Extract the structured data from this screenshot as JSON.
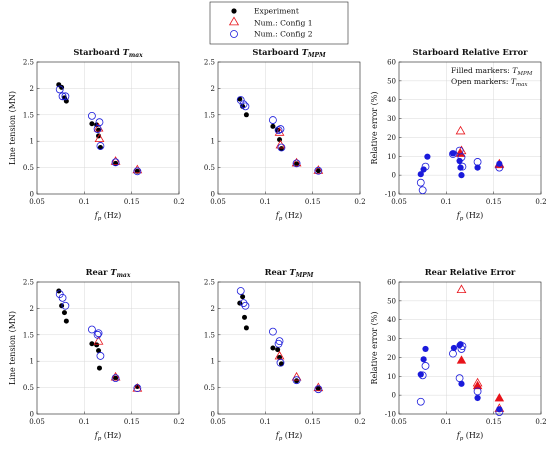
{
  "legend": {
    "items": [
      {
        "label": "Experiment",
        "marker": "dot",
        "color": "#000000"
      },
      {
        "label": "Num.: Config 1",
        "marker": "triangle",
        "color": "#e8131a"
      },
      {
        "label": "Num.: Config 2",
        "marker": "circle",
        "color": "#1a1adb"
      }
    ]
  },
  "colors": {
    "experiment": "#000000",
    "config1": "#e8131a",
    "config2": "#1a1adb"
  },
  "chart_data": [
    {
      "type": "scatter",
      "title_main": "Starboard ",
      "title_sym": "T",
      "title_sub": "max",
      "xlabel_sym": "f",
      "xlabel_sub": "p",
      "xlabel_rest": " (Hz)",
      "ylabel": "Line tension (MN)",
      "xlim": [
        0.05,
        0.2
      ],
      "ylim": [
        0,
        2.5
      ],
      "xticks": [
        "0.05",
        "0.1",
        "0.15",
        "0.2"
      ],
      "yticks": [
        "0",
        "0.5",
        "1",
        "1.5",
        "2",
        "2.5"
      ],
      "grid": true,
      "series": [
        {
          "name": "Experiment",
          "marker": "dot",
          "x": [
            0.073,
            0.076,
            0.079,
            0.081,
            0.108,
            0.113,
            0.115,
            0.115,
            0.117,
            0.133,
            0.156
          ],
          "y": [
            2.07,
            2.02,
            1.82,
            1.76,
            1.33,
            1.31,
            1.21,
            1.1,
            0.88,
            0.58,
            0.43
          ]
        },
        {
          "name": "Num.: Config 1",
          "marker": "triangle",
          "x": [
            0.115,
            0.116,
            0.133,
            0.156
          ],
          "y": [
            1.25,
            1.05,
            0.62,
            0.46
          ]
        },
        {
          "name": "Num.: Config 2",
          "marker": "circle",
          "x": [
            0.074,
            0.077,
            0.08,
            0.108,
            0.114,
            0.116,
            0.117,
            0.133,
            0.156
          ],
          "y": [
            1.98,
            1.85,
            1.85,
            1.48,
            1.23,
            1.36,
            0.91,
            0.6,
            0.43
          ]
        }
      ]
    },
    {
      "type": "scatter",
      "title_main": "Starboard ",
      "title_sym": "T",
      "title_sub": "MPM",
      "xlabel_sym": "f",
      "xlabel_sub": "p",
      "xlabel_rest": " (Hz)",
      "ylabel": "",
      "xlim": [
        0.05,
        0.2
      ],
      "ylim": [
        0,
        2.5
      ],
      "xticks": [
        "0.05",
        "0.1",
        "0.15",
        "0.2"
      ],
      "yticks": [
        "0",
        "0.5",
        "1",
        "1.5",
        "2",
        "2.5"
      ],
      "grid": true,
      "series": [
        {
          "name": "Experiment",
          "marker": "dot",
          "x": [
            0.073,
            0.076,
            0.08,
            0.108,
            0.113,
            0.115,
            0.117,
            0.133,
            0.156
          ],
          "y": [
            1.8,
            1.66,
            1.5,
            1.28,
            1.21,
            1.03,
            0.86,
            0.57,
            0.44
          ]
        },
        {
          "name": "Num.: Config 1",
          "marker": "triangle",
          "x": [
            0.115,
            0.116,
            0.133,
            0.156
          ],
          "y": [
            1.17,
            0.93,
            0.59,
            0.45
          ]
        },
        {
          "name": "Num.: Config 2",
          "marker": "circle",
          "x": [
            0.074,
            0.077,
            0.079,
            0.108,
            0.114,
            0.116,
            0.117,
            0.133,
            0.156
          ],
          "y": [
            1.78,
            1.7,
            1.66,
            1.4,
            1.21,
            1.23,
            0.88,
            0.58,
            0.44
          ]
        }
      ]
    },
    {
      "type": "scatter",
      "title_main": "Starboard Relative Error",
      "title_sym": "",
      "title_sub": "",
      "xlabel_sym": "f",
      "xlabel_sub": "p",
      "xlabel_rest": " (Hz)",
      "ylabel": "Relative error (%)",
      "xlim": [
        0.05,
        0.2
      ],
      "ylim": [
        -10,
        60
      ],
      "xticks": [
        "0.05",
        "0.1",
        "0.15",
        "0.2"
      ],
      "yticks": [
        "-10",
        "0",
        "10",
        "20",
        "30",
        "40",
        "50",
        "60"
      ],
      "grid": true,
      "notes": [
        {
          "main": "Filled markers: ",
          "sym": "T",
          "sub": "MPM"
        },
        {
          "main": "Open markers: ",
          "sym": "T",
          "sub": "max"
        }
      ],
      "series": [
        {
          "name": "Num.: Config 1",
          "marker": "triangle",
          "x": [
            0.115,
            0.116,
            0.156
          ],
          "y": [
            23.5,
            13,
            6
          ]
        },
        {
          "name": "Num.: Config 1 (filled)",
          "marker": "triangle-filled",
          "x": [
            0.115,
            0.156
          ],
          "y": [
            11.5,
            5.5
          ]
        },
        {
          "name": "Num.: Config 2 (filled)",
          "marker": "dot-blue",
          "x": [
            0.073,
            0.076,
            0.08,
            0.107,
            0.114,
            0.115,
            0.116,
            0.133,
            0.156
          ],
          "y": [
            0.5,
            3,
            9.8,
            11.5,
            7.5,
            4,
            0,
            4,
            6
          ]
        },
        {
          "name": "Num.: Config 2",
          "marker": "circle",
          "x": [
            0.073,
            0.075,
            0.078,
            0.107,
            0.114,
            0.116,
            0.117,
            0.133,
            0.156
          ],
          "y": [
            -4,
            -8,
            4.5,
            11.2,
            13,
            9.5,
            4.5,
            7,
            4
          ]
        }
      ]
    },
    {
      "type": "scatter",
      "title_main": "Rear ",
      "title_sym": "T",
      "title_sub": "max",
      "xlabel_sym": "f",
      "xlabel_sub": "p",
      "xlabel_rest": " (Hz)",
      "ylabel": "Line tension (MN)",
      "xlim": [
        0.05,
        0.2
      ],
      "ylim": [
        0,
        2.5
      ],
      "xticks": [
        "0.05",
        "0.1",
        "0.15",
        "0.2"
      ],
      "yticks": [
        "0",
        "0.5",
        "1",
        "1.5",
        "2",
        "2.5"
      ],
      "grid": true,
      "series": [
        {
          "name": "Experiment",
          "marker": "dot",
          "x": [
            0.073,
            0.076,
            0.079,
            0.081,
            0.108,
            0.113,
            0.115,
            0.116,
            0.133,
            0.156
          ],
          "y": [
            2.33,
            2.05,
            1.92,
            1.76,
            1.33,
            1.31,
            1.2,
            0.87,
            0.68,
            0.52
          ]
        },
        {
          "name": "Num.: Config 1",
          "marker": "triangle",
          "x": [
            0.115,
            0.133,
            0.156
          ],
          "y": [
            1.38,
            0.7,
            0.49
          ]
        },
        {
          "name": "Num.: Config 2",
          "marker": "circle",
          "x": [
            0.074,
            0.077,
            0.08,
            0.108,
            0.114,
            0.115,
            0.117,
            0.133,
            0.156
          ],
          "y": [
            2.27,
            2.2,
            2.05,
            1.6,
            1.5,
            1.53,
            1.1,
            0.68,
            0.49
          ]
        }
      ]
    },
    {
      "type": "scatter",
      "title_main": "Rear ",
      "title_sym": "T",
      "title_sub": "MPM",
      "xlabel_sym": "f",
      "xlabel_sub": "p",
      "xlabel_rest": " (Hz)",
      "ylabel": "",
      "xlim": [
        0.05,
        0.2
      ],
      "ylim": [
        0,
        2.5
      ],
      "xticks": [
        "0.05",
        "0.1",
        "0.15",
        "0.2"
      ],
      "yticks": [
        "0",
        "0.5",
        "1",
        "1.5",
        "2",
        "2.5"
      ],
      "grid": true,
      "series": [
        {
          "name": "Experiment",
          "marker": "dot",
          "x": [
            0.073,
            0.076,
            0.078,
            0.08,
            0.108,
            0.113,
            0.115,
            0.117,
            0.133,
            0.156
          ],
          "y": [
            2.1,
            2.22,
            1.83,
            1.63,
            1.25,
            1.22,
            1.07,
            0.95,
            0.63,
            0.48
          ]
        },
        {
          "name": "Num.: Config 1",
          "marker": "triangle",
          "x": [
            0.115,
            0.133,
            0.156
          ],
          "y": [
            1.1,
            0.7,
            0.5
          ]
        },
        {
          "name": "Num.: Config 2",
          "marker": "circle",
          "x": [
            0.074,
            0.077,
            0.079,
            0.108,
            0.114,
            0.115,
            0.116,
            0.133,
            0.156
          ],
          "y": [
            2.33,
            2.1,
            2.05,
            1.56,
            1.33,
            1.38,
            0.97,
            0.64,
            0.47
          ]
        }
      ]
    },
    {
      "type": "scatter",
      "title_main": "Rear Relative Error",
      "title_sym": "",
      "title_sub": "",
      "xlabel_sym": "f",
      "xlabel_sub": "p",
      "xlabel_rest": " (Hz)",
      "ylabel": "Relative error (%)",
      "xlim": [
        0.05,
        0.2
      ],
      "ylim": [
        -10,
        60
      ],
      "xticks": [
        "0.05",
        "0.1",
        "0.15",
        "0.2"
      ],
      "yticks": [
        "-10",
        "0",
        "10",
        "20",
        "30",
        "40",
        "50",
        "60"
      ],
      "grid": true,
      "series": [
        {
          "name": "Num.: Config 1",
          "marker": "triangle",
          "x": [
            0.116,
            0.133,
            0.156
          ],
          "y": [
            56,
            6.5,
            -7
          ]
        },
        {
          "name": "Num.: Config 1 (filled)",
          "marker": "triangle-filled",
          "x": [
            0.116,
            0.133,
            0.156
          ],
          "y": [
            18.5,
            5,
            -1.5
          ]
        },
        {
          "name": "Num.: Config 2 (filled)",
          "marker": "dot-blue",
          "x": [
            0.073,
            0.076,
            0.078,
            0.108,
            0.114,
            0.115,
            0.116,
            0.133,
            0.156
          ],
          "y": [
            11,
            19,
            24.5,
            25,
            26.5,
            27,
            6,
            -1.5,
            -7.5
          ]
        },
        {
          "name": "Num.: Config 2",
          "marker": "circle",
          "x": [
            0.073,
            0.075,
            0.078,
            0.107,
            0.114,
            0.116,
            0.117,
            0.133,
            0.156
          ],
          "y": [
            -3.5,
            10.5,
            15.5,
            22,
            9,
            24.5,
            26,
            2,
            -9
          ]
        }
      ]
    }
  ]
}
